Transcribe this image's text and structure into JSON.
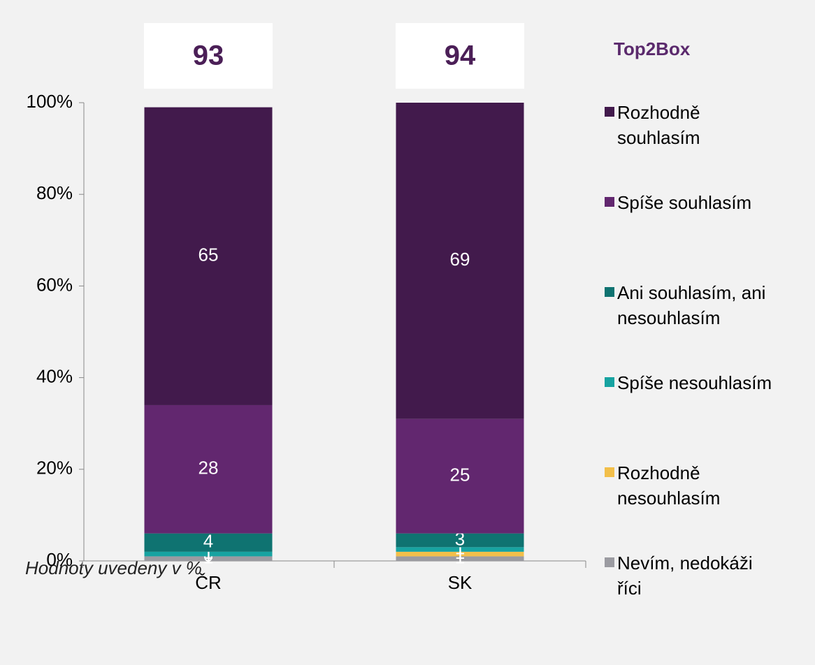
{
  "chart_data": {
    "type": "stacked_bar",
    "categories": [
      "ČR",
      "SK"
    ],
    "series": [
      {
        "name": "Nevím, nedokáži říci",
        "color": "#9b9ba1",
        "values": [
          1,
          1
        ]
      },
      {
        "name": "Rozhodně nesouhlasím",
        "color": "#f2bf4a",
        "values": [
          0,
          1
        ]
      },
      {
        "name": "Spíše nesouhlasím",
        "color": "#17a3a1",
        "values": [
          1,
          1
        ]
      },
      {
        "name": "Ani souhlasím, ani nesouhlasím",
        "color": "#0f7371",
        "values": [
          4,
          3
        ]
      },
      {
        "name": "Spíše souhlasím",
        "color": "#62276f",
        "values": [
          28,
          25
        ]
      },
      {
        "name": "Rozhodně souhlasím",
        "color": "#421a4c",
        "values": [
          65,
          69
        ]
      }
    ],
    "ylim": [
      0,
      100
    ],
    "yticks": [
      {
        "value": 0,
        "label": "0%"
      },
      {
        "value": 20,
        "label": "20%"
      },
      {
        "value": 40,
        "label": "40%"
      },
      {
        "value": 60,
        "label": "60%"
      },
      {
        "value": 80,
        "label": "80%"
      },
      {
        "value": 100,
        "label": "100%"
      }
    ],
    "top2box": {
      "title": "Top2Box",
      "values": [
        93,
        94
      ]
    },
    "footnote": "Hodnoty uvedeny v %"
  }
}
